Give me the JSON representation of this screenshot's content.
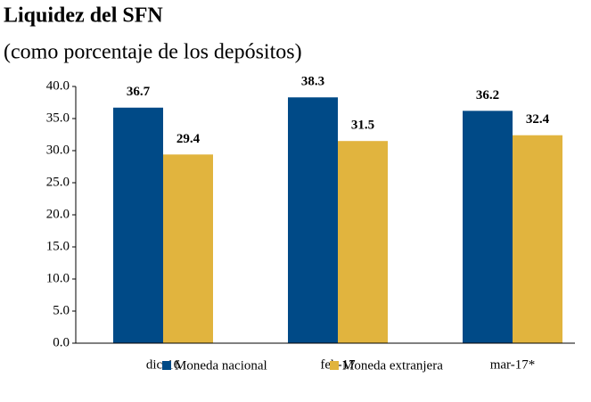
{
  "chart_data": {
    "type": "bar",
    "title": "Liquidez del SFN",
    "subtitle": "(como porcentaje de los depósitos)",
    "categories": [
      "dic-16",
      "feb-17",
      "mar-17*"
    ],
    "series": [
      {
        "name": "Moneda nacional",
        "color": "#004a87",
        "values": [
          36.7,
          38.3,
          36.2
        ]
      },
      {
        "name": "Moneda extranjera",
        "color": "#e1b43e",
        "values": [
          29.4,
          31.5,
          32.4
        ]
      }
    ],
    "ylim": [
      0,
      40
    ],
    "yticks": [
      {
        "value": 0,
        "label": "0.0"
      },
      {
        "value": 5,
        "label": "5.0"
      },
      {
        "value": 10,
        "label": "10.0"
      },
      {
        "value": 15,
        "label": "15.0"
      },
      {
        "value": 20,
        "label": "20.0"
      },
      {
        "value": 25,
        "label": "25.0"
      },
      {
        "value": 30,
        "label": "30.0"
      },
      {
        "value": 35,
        "label": "35.0"
      },
      {
        "value": 40,
        "label": "40.0"
      }
    ],
    "legend": "bottom"
  }
}
